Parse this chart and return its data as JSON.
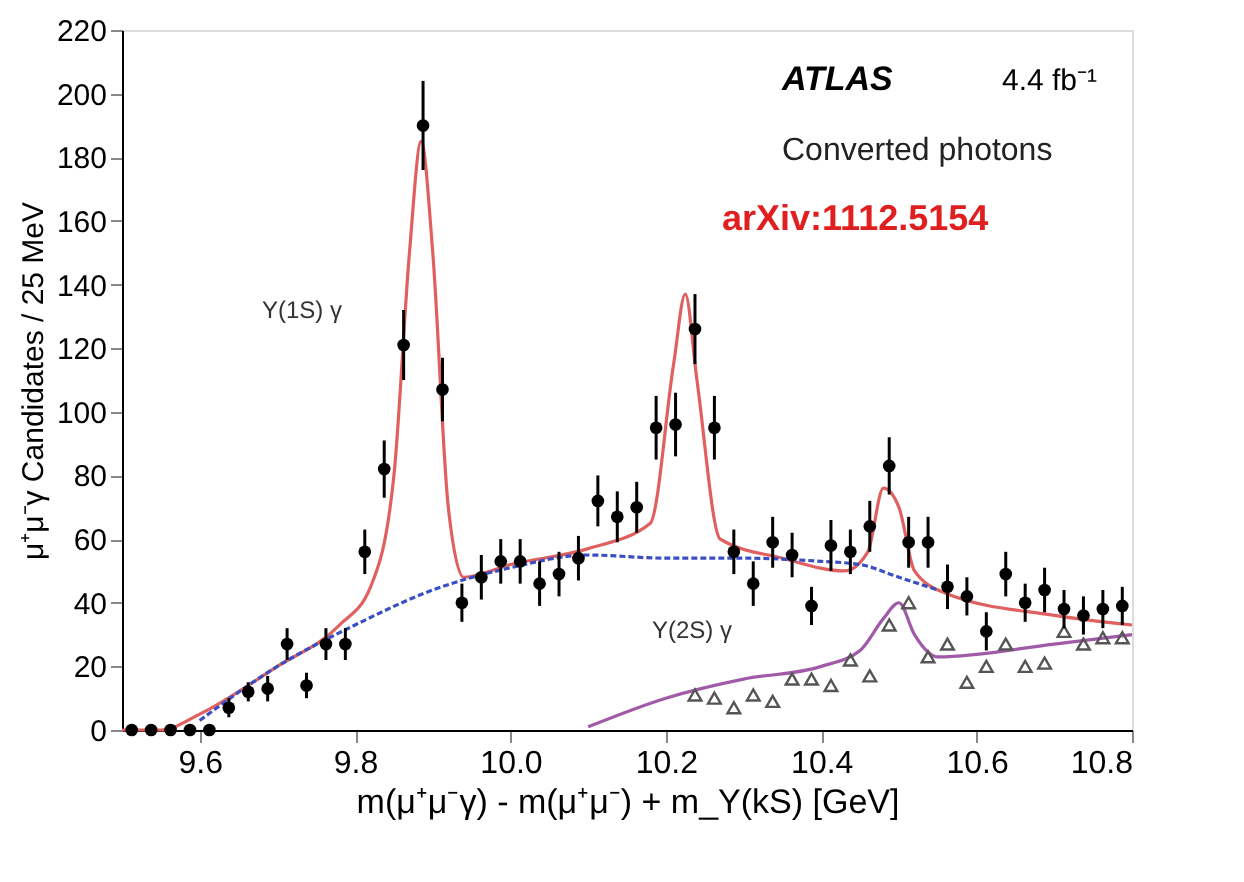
{
  "chart_data": {
    "type": "scatter",
    "xlabel": "m(μ⁺μ⁻γ) - m(μ⁺μ⁻) + m_Υ(kS) [GeV]",
    "ylabel": "μ⁺μ⁻γ Candidates / 25 MeV",
    "xlim": [
      9.5,
      10.8
    ],
    "ylim": [
      0,
      220
    ],
    "xticks": [
      9.6,
      9.8,
      {
        "value": 10.0,
        "label": "10.0"
      },
      10.2,
      10.4,
      10.6,
      10.8
    ],
    "yticks": [
      0,
      20,
      40,
      60,
      80,
      100,
      120,
      140,
      160,
      180,
      200,
      220
    ],
    "grid": false,
    "annotations": [
      "ATLAS",
      "4.4 fb⁻¹",
      "Converted photons",
      "arXiv:1112.5154",
      "Υ(1S) γ",
      "Υ(2S) γ"
    ],
    "series": [
      {
        "type": "line",
        "color": "#a05aa8",
        "line_style": "solid",
        "marker": "none",
        "x": [
          10.1,
          10.2,
          10.3,
          10.4,
          10.45,
          10.48,
          10.5,
          10.52,
          10.55,
          10.7,
          10.8
        ],
        "values": [
          1,
          10,
          16,
          20,
          25,
          35,
          40,
          30,
          23,
          27,
          30
        ]
      },
      {
        "type": "line",
        "color": "#e06060",
        "line_style": "solid",
        "marker": "none",
        "x": [
          9.5,
          9.55,
          9.6,
          9.7,
          9.78,
          9.82,
          9.85,
          9.87,
          9.885,
          9.9,
          9.92,
          9.94,
          10.0,
          10.1,
          10.18,
          10.21,
          10.225,
          10.24,
          10.27,
          10.35,
          10.43,
          10.46,
          10.48,
          10.5,
          10.52,
          10.56,
          10.7,
          10.8
        ],
        "values": [
          0,
          0,
          5,
          20,
          33,
          45,
          80,
          150,
          185,
          150,
          70,
          48,
          52,
          57,
          65,
          115,
          137,
          110,
          60,
          54,
          50,
          56,
          76,
          70,
          50,
          43,
          36,
          33
        ]
      },
      {
        "type": "line",
        "color": "#3b4fc4",
        "line_style": "dashed",
        "marker": "none",
        "x": [
          9.6,
          9.7,
          9.8,
          9.9,
          10.0,
          10.1,
          10.2,
          10.3,
          10.4,
          10.45,
          10.5,
          10.55
        ],
        "values": [
          3,
          20,
          33,
          44,
          51,
          55,
          54,
          54,
          53,
          52,
          48,
          44
        ]
      },
      {
        "color": "#555555",
        "marker": "triangle",
        "x": [
          10.2375,
          10.2625,
          10.2875,
          10.3125,
          10.3375,
          10.3625,
          10.3875,
          10.4125,
          10.4375,
          10.4625,
          10.4875,
          10.5125,
          10.5375,
          10.5625,
          10.5875,
          10.6125,
          10.6375,
          10.6625,
          10.6875,
          10.7125,
          10.7375,
          10.7625,
          10.7875
        ],
        "values": [
          11,
          10,
          7,
          11,
          9,
          16,
          16,
          14,
          22,
          17,
          33,
          40,
          23,
          27,
          15,
          20,
          27,
          20,
          21,
          31,
          27,
          29,
          29
        ]
      },
      {
        "color": "#000000",
        "marker": "circle",
        "x": [
          9.5125,
          9.5375,
          9.5625,
          9.5875,
          9.6125,
          9.6375,
          9.6625,
          9.6875,
          9.7125,
          9.7375,
          9.7625,
          9.7875,
          9.8125,
          9.8375,
          9.8625,
          9.8875,
          9.9125,
          9.9375,
          9.9625,
          9.9875,
          10.0125,
          10.0375,
          10.0625,
          10.0875,
          10.1125,
          10.1375,
          10.1625,
          10.1875,
          10.2125,
          10.2375,
          10.2625,
          10.2875,
          10.3125,
          10.3375,
          10.3625,
          10.3875,
          10.4125,
          10.4375,
          10.4625,
          10.4875,
          10.5125,
          10.5375,
          10.5625,
          10.5875,
          10.6125,
          10.6375,
          10.6625,
          10.6875,
          10.7125,
          10.7375,
          10.7625,
          10.7875
        ],
        "values": [
          0,
          0,
          0,
          0,
          0,
          7,
          12,
          13,
          27,
          14,
          27,
          27,
          56,
          82,
          121,
          190,
          107,
          40,
          48,
          53,
          53,
          46,
          49,
          54,
          72,
          67,
          70,
          95,
          96,
          126,
          95,
          56,
          46,
          59,
          55,
          39,
          58,
          56,
          64,
          83,
          59,
          59,
          45,
          42,
          31,
          49,
          40,
          44,
          38,
          36,
          38,
          39
        ],
        "errors": [
          null,
          null,
          null,
          null,
          null,
          3,
          3,
          4,
          5,
          4,
          5,
          5,
          7,
          9,
          11,
          14,
          10,
          6,
          7,
          7,
          7,
          7,
          7,
          7,
          8,
          8,
          8,
          10,
          10,
          11,
          10,
          7,
          7,
          8,
          7,
          6,
          8,
          7,
          8,
          9,
          8,
          8,
          7,
          6,
          6,
          7,
          6,
          7,
          6,
          6,
          6,
          6
        ]
      }
    ]
  }
}
